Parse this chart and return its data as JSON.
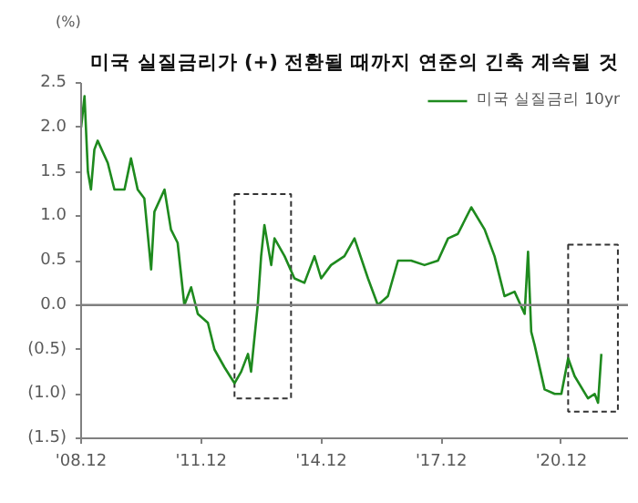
{
  "chart_data": {
    "type": "line",
    "title": "미국 실질금리가 (+) 전환될 때까지 연준의 긴축 계속될 것",
    "ylabel": "(%)",
    "x": [
      "2008-12",
      "2009-01",
      "2009-02",
      "2009-03",
      "2009-04",
      "2009-05",
      "2009-08",
      "2009-10",
      "2010-01",
      "2010-03",
      "2010-05",
      "2010-07",
      "2010-09",
      "2010-10",
      "2011-01",
      "2011-03",
      "2011-05",
      "2011-07",
      "2011-09",
      "2011-11",
      "2012-02",
      "2012-04",
      "2012-07",
      "2012-10",
      "2012-12",
      "2013-02",
      "2013-03",
      "2013-05",
      "2013-06",
      "2013-07",
      "2013-09",
      "2013-10",
      "2014-01",
      "2014-04",
      "2014-07",
      "2014-10",
      "2014-12",
      "2015-03",
      "2015-07",
      "2015-10",
      "2016-02",
      "2016-05",
      "2016-08",
      "2016-11",
      "2017-03",
      "2017-07",
      "2017-11",
      "2018-02",
      "2018-05",
      "2018-09",
      "2019-01",
      "2019-04",
      "2019-07",
      "2019-10",
      "2020-01",
      "2020-02",
      "2020-03",
      "2020-04",
      "2020-07",
      "2020-10",
      "2020-12",
      "2021-02",
      "2021-04",
      "2021-08",
      "2021-10",
      "2021-11",
      "2021-12"
    ],
    "series": [
      {
        "name": "미국 실질금리 10yr",
        "color": "#1e8a1e",
        "values": [
          2.0,
          2.35,
          1.5,
          1.3,
          1.75,
          1.85,
          1.6,
          1.3,
          1.3,
          1.65,
          1.3,
          1.2,
          0.4,
          1.05,
          1.3,
          0.85,
          0.7,
          0.0,
          0.2,
          -0.1,
          -0.2,
          -0.5,
          -0.7,
          -0.88,
          -0.75,
          -0.55,
          -0.75,
          0.0,
          0.55,
          0.9,
          0.45,
          0.75,
          0.55,
          0.3,
          0.25,
          0.55,
          0.3,
          0.45,
          0.55,
          0.75,
          0.3,
          0.0,
          0.1,
          0.5,
          0.5,
          0.45,
          0.5,
          0.75,
          0.8,
          1.1,
          0.85,
          0.55,
          0.1,
          0.15,
          -0.1,
          0.6,
          -0.3,
          -0.45,
          -0.95,
          -1.0,
          -1.0,
          -0.6,
          -0.8,
          -1.05,
          -1.0,
          -1.1,
          -0.55
        ]
      }
    ],
    "xlim": [
      "2008-12",
      "2022-08"
    ],
    "xticks": [
      {
        "value": "2008-12",
        "label": "'08.12"
      },
      {
        "value": "2011-12",
        "label": "'11.12"
      },
      {
        "value": "2014-12",
        "label": "'14.12"
      },
      {
        "value": "2017-12",
        "label": "'17.12"
      },
      {
        "value": "2020-12",
        "label": "'20.12"
      }
    ],
    "ylim": [
      -1.5,
      2.5
    ],
    "yticks": [
      {
        "value": -1.5,
        "label": "(1.5)"
      },
      {
        "value": -1.0,
        "label": "(1.0)"
      },
      {
        "value": -0.5,
        "label": "(0.5)"
      },
      {
        "value": 0,
        "label": "0.0"
      },
      {
        "value": 0.5,
        "label": "0.5"
      },
      {
        "value": 1.0,
        "label": "1.0"
      },
      {
        "value": 1.5,
        "label": "1.5"
      },
      {
        "value": 2.0,
        "label": "2.0"
      },
      {
        "value": 2.5,
        "label": "2.5"
      }
    ],
    "ref_lines": [
      {
        "axis": "y",
        "value": 0,
        "color": "#7f7f7f"
      }
    ],
    "legend": "top right",
    "grid": false,
    "line_style": "solid",
    "marker": "none"
  }
}
